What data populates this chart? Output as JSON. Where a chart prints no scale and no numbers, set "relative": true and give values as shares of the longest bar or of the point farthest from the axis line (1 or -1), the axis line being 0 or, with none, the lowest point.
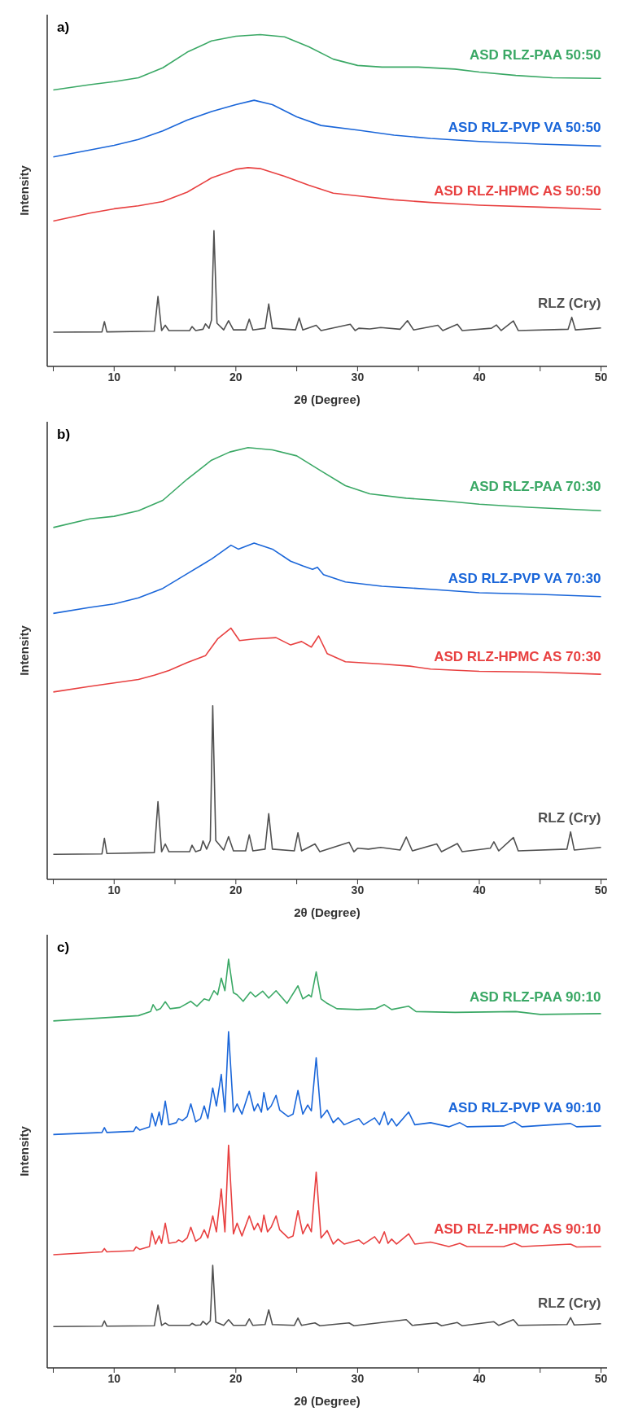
{
  "chart_data": [
    {
      "type": "line",
      "title": "a)",
      "xlabel": "2θ (Degree)",
      "ylabel": "Intensity",
      "relative": true,
      "tick_labels": "x",
      "marker": "none",
      "xlim": [
        4.5,
        50.5
      ],
      "xticks": [
        {
          "value": 5,
          "label": null
        },
        10,
        {
          "value": 15,
          "label": null
        },
        20,
        {
          "value": 25,
          "label": null
        },
        30,
        {
          "value": 35,
          "label": null
        },
        40,
        {
          "value": 45,
          "label": null
        },
        50
      ],
      "series": [
        {
          "name": "ASD RLZ-PAA 50:50",
          "color": "#3aa865",
          "x": [
            5,
            8,
            10,
            12,
            14,
            16,
            18,
            20,
            22,
            24,
            26,
            28,
            30,
            32,
            35,
            38,
            40,
            43,
            46,
            50
          ],
          "values": [
            0.833,
            0.849,
            0.858,
            0.87,
            0.9,
            0.947,
            0.981,
            0.995,
            1.0,
            0.993,
            0.963,
            0.926,
            0.907,
            0.902,
            0.902,
            0.896,
            0.887,
            0.877,
            0.87,
            0.868
          ]
        },
        {
          "name": "ASD RLZ-PVP VA 50:50",
          "color": "#1a66d9",
          "x": [
            5,
            8,
            10,
            12,
            14,
            16,
            18,
            20,
            21.5,
            23,
            25,
            27,
            30,
            33,
            36,
            40,
            45,
            50
          ],
          "values": [
            0.631,
            0.652,
            0.666,
            0.684,
            0.71,
            0.742,
            0.768,
            0.789,
            0.802,
            0.789,
            0.752,
            0.726,
            0.712,
            0.697,
            0.687,
            0.678,
            0.67,
            0.664
          ]
        },
        {
          "name": "ASD RLZ-HPMC AS 50:50",
          "color": "#e84040",
          "x": [
            5,
            8,
            10,
            12,
            14,
            16,
            18,
            20,
            21,
            22,
            24,
            26,
            28,
            30,
            33,
            36,
            40,
            45,
            50
          ],
          "values": [
            0.438,
            0.462,
            0.475,
            0.484,
            0.497,
            0.525,
            0.568,
            0.594,
            0.599,
            0.596,
            0.573,
            0.546,
            0.522,
            0.514,
            0.502,
            0.494,
            0.486,
            0.48,
            0.473
          ]
        },
        {
          "name": "RLZ (Cry)",
          "color": "#505050",
          "x": [
            5,
            9.0,
            9.2,
            9.4,
            13.3,
            13.6,
            13.9,
            14.2,
            14.5,
            16.2,
            16.4,
            16.7,
            17.3,
            17.5,
            17.8,
            18.0,
            18.2,
            18.45,
            19.0,
            19.4,
            19.8,
            20.8,
            21.1,
            21.4,
            22.4,
            22.7,
            23.0,
            24.9,
            25.2,
            25.5,
            26.6,
            27.0,
            29.4,
            29.8,
            30.1,
            31.0,
            31.9,
            33.5,
            34.1,
            34.6,
            36.6,
            37.0,
            38.2,
            38.6,
            41.0,
            41.4,
            41.8,
            42.8,
            43.2,
            47.3,
            47.6,
            47.9,
            50
          ],
          "values": [
            0.103,
            0.104,
            0.135,
            0.104,
            0.106,
            0.211,
            0.108,
            0.124,
            0.108,
            0.108,
            0.12,
            0.108,
            0.112,
            0.128,
            0.115,
            0.14,
            0.409,
            0.13,
            0.11,
            0.138,
            0.11,
            0.11,
            0.142,
            0.11,
            0.115,
            0.188,
            0.115,
            0.11,
            0.146,
            0.11,
            0.124,
            0.108,
            0.127,
            0.108,
            0.115,
            0.113,
            0.117,
            0.112,
            0.138,
            0.11,
            0.124,
            0.108,
            0.127,
            0.108,
            0.115,
            0.125,
            0.108,
            0.137,
            0.108,
            0.112,
            0.148,
            0.11,
            0.116
          ]
        }
      ]
    },
    {
      "type": "line",
      "title": "b)",
      "xlabel": "2θ (Degree)",
      "ylabel": "Intensity",
      "relative": true,
      "tick_labels": "x",
      "marker": "none",
      "xlim": [
        4.5,
        50.5
      ],
      "xticks": [
        {
          "value": 5,
          "label": null
        },
        10,
        {
          "value": 15,
          "label": null
        },
        20,
        {
          "value": 25,
          "label": null
        },
        30,
        {
          "value": 35,
          "label": null
        },
        40,
        {
          "value": 45,
          "label": null
        },
        50
      ],
      "series": [
        {
          "name": "ASD RLZ-PAA 70:30",
          "color": "#3aa865",
          "x": [
            5,
            8,
            10,
            12,
            14,
            16,
            18,
            19.5,
            21,
            23,
            25,
            27,
            29,
            31,
            34,
            37,
            40,
            44,
            50
          ],
          "values": [
            0.815,
            0.835,
            0.841,
            0.854,
            0.878,
            0.927,
            0.971,
            0.99,
            1.0,
            0.995,
            0.981,
            0.946,
            0.912,
            0.893,
            0.883,
            0.877,
            0.869,
            0.862,
            0.854
          ]
        },
        {
          "name": "ASD RLZ-PVP VA 70:30",
          "color": "#1a66d9",
          "x": [
            5,
            8,
            10,
            12,
            14,
            16,
            18,
            19.6,
            20.2,
            21.5,
            23,
            24.5,
            25.5,
            26.3,
            26.7,
            27.2,
            29,
            32,
            36,
            40,
            45,
            50
          ],
          "values": [
            0.616,
            0.63,
            0.638,
            0.652,
            0.674,
            0.708,
            0.742,
            0.774,
            0.765,
            0.779,
            0.765,
            0.737,
            0.726,
            0.718,
            0.723,
            0.706,
            0.689,
            0.679,
            0.672,
            0.664,
            0.66,
            0.655
          ]
        },
        {
          "name": "ASD RLZ-HPMC AS 70:30",
          "color": "#e84040",
          "x": [
            5,
            8,
            10,
            12,
            13.3,
            14.5,
            16,
            17.5,
            18.5,
            19.6,
            20.3,
            21.5,
            23.3,
            24.5,
            25.4,
            26.2,
            26.8,
            27.5,
            29,
            32,
            34.3,
            36,
            40,
            45,
            50
          ],
          "values": [
            0.434,
            0.447,
            0.455,
            0.463,
            0.473,
            0.484,
            0.502,
            0.518,
            0.557,
            0.582,
            0.553,
            0.557,
            0.56,
            0.543,
            0.551,
            0.538,
            0.564,
            0.523,
            0.504,
            0.499,
            0.494,
            0.487,
            0.482,
            0.48,
            0.475
          ]
        },
        {
          "name": "RLZ (Cry)",
          "color": "#505050",
          "x": [
            5,
            9.0,
            9.2,
            9.4,
            13.3,
            13.6,
            13.9,
            14.2,
            14.5,
            16.2,
            16.4,
            16.7,
            17.1,
            17.3,
            17.6,
            17.9,
            18.1,
            18.35,
            19.0,
            19.4,
            19.8,
            20.8,
            21.1,
            21.4,
            22.4,
            22.7,
            23.0,
            24.8,
            25.1,
            25.4,
            26.5,
            26.9,
            29.3,
            29.7,
            30.0,
            30.9,
            31.9,
            33.5,
            34.0,
            34.5,
            36.5,
            36.9,
            38.2,
            38.6,
            40.9,
            41.2,
            41.6,
            42.8,
            43.2,
            47.2,
            47.5,
            47.8,
            50
          ],
          "values": [
            0.058,
            0.059,
            0.095,
            0.06,
            0.062,
            0.18,
            0.064,
            0.082,
            0.064,
            0.064,
            0.079,
            0.064,
            0.068,
            0.089,
            0.07,
            0.09,
            0.402,
            0.09,
            0.068,
            0.099,
            0.066,
            0.066,
            0.103,
            0.066,
            0.07,
            0.152,
            0.07,
            0.066,
            0.108,
            0.066,
            0.082,
            0.064,
            0.086,
            0.064,
            0.072,
            0.07,
            0.074,
            0.068,
            0.098,
            0.066,
            0.082,
            0.064,
            0.083,
            0.064,
            0.072,
            0.087,
            0.066,
            0.097,
            0.066,
            0.07,
            0.11,
            0.068,
            0.074
          ]
        }
      ]
    },
    {
      "type": "line",
      "title": "c)",
      "xlabel": "2θ (Degree)",
      "ylabel": "Intensity",
      "relative": true,
      "tick_labels": "x",
      "marker": "none",
      "xlim": [
        4.5,
        50.5
      ],
      "xticks": [
        {
          "value": 5,
          "label": null
        },
        10,
        {
          "value": 15,
          "label": null
        },
        20,
        {
          "value": 25,
          "label": null
        },
        30,
        {
          "value": 35,
          "label": null
        },
        40,
        {
          "value": 45,
          "label": null
        },
        50
      ],
      "series": [
        {
          "name": "ASD RLZ-PAA 90:10",
          "color": "#3aa865",
          "x": [
            5,
            12,
            13.0,
            13.2,
            13.5,
            13.8,
            14.2,
            14.6,
            15.4,
            16.3,
            16.8,
            17.4,
            17.8,
            18.2,
            18.5,
            18.8,
            19.1,
            19.4,
            19.8,
            20.1,
            20.6,
            21.2,
            21.6,
            22.2,
            22.7,
            23.3,
            24.2,
            25.1,
            25.5,
            26.0,
            26.2,
            26.6,
            27.0,
            27.5,
            28.3,
            30,
            31.5,
            32.2,
            32.8,
            34.2,
            34.8,
            38,
            43,
            45,
            50
          ],
          "values": [
            0.849,
            0.862,
            0.872,
            0.889,
            0.875,
            0.879,
            0.896,
            0.879,
            0.882,
            0.897,
            0.885,
            0.903,
            0.899,
            0.923,
            0.913,
            0.954,
            0.923,
            1.0,
            0.918,
            0.913,
            0.897,
            0.92,
            0.908,
            0.922,
            0.905,
            0.923,
            0.892,
            0.935,
            0.903,
            0.913,
            0.908,
            0.969,
            0.903,
            0.892,
            0.879,
            0.877,
            0.879,
            0.889,
            0.877,
            0.885,
            0.872,
            0.87,
            0.872,
            0.865,
            0.867
          ]
        },
        {
          "name": "ASD RLZ-PVP VA 90:10",
          "color": "#1a66d9",
          "x": [
            5,
            9.0,
            9.2,
            9.4,
            11.6,
            11.8,
            12.1,
            12.9,
            13.1,
            13.4,
            13.7,
            13.9,
            14.2,
            14.5,
            15.1,
            15.3,
            15.6,
            16.0,
            16.3,
            16.7,
            17.1,
            17.4,
            17.7,
            18.1,
            18.4,
            18.8,
            19.1,
            19.4,
            19.8,
            20.1,
            20.5,
            21.1,
            21.5,
            21.8,
            22.1,
            22.3,
            22.6,
            22.9,
            23.3,
            23.6,
            24.3,
            24.7,
            25.1,
            25.5,
            25.9,
            26.2,
            26.6,
            27.0,
            27.5,
            28.0,
            28.4,
            28.9,
            30.1,
            30.5,
            31.4,
            31.8,
            32.2,
            32.5,
            32.8,
            33.2,
            34.2,
            34.7,
            36.0,
            37.5,
            38.4,
            39.0,
            42.0,
            42.9,
            43.5,
            47.5,
            48.0,
            50
          ],
          "values": [
            0.571,
            0.576,
            0.588,
            0.576,
            0.579,
            0.59,
            0.582,
            0.59,
            0.623,
            0.592,
            0.626,
            0.595,
            0.653,
            0.595,
            0.6,
            0.61,
            0.605,
            0.615,
            0.646,
            0.602,
            0.61,
            0.641,
            0.61,
            0.685,
            0.641,
            0.718,
            0.626,
            0.823,
            0.626,
            0.646,
            0.621,
            0.677,
            0.629,
            0.646,
            0.626,
            0.674,
            0.631,
            0.641,
            0.667,
            0.631,
            0.615,
            0.621,
            0.679,
            0.621,
            0.643,
            0.629,
            0.759,
            0.612,
            0.631,
            0.6,
            0.612,
            0.595,
            0.61,
            0.595,
            0.612,
            0.595,
            0.626,
            0.595,
            0.61,
            0.592,
            0.626,
            0.595,
            0.6,
            0.59,
            0.6,
            0.59,
            0.592,
            0.602,
            0.59,
            0.598,
            0.59,
            0.592
          ]
        },
        {
          "name": "ASD RLZ-HPMC AS 90:10",
          "color": "#e84040",
          "x": [
            5,
            9.0,
            9.2,
            9.4,
            11.6,
            11.8,
            12.1,
            12.9,
            13.1,
            13.4,
            13.7,
            13.9,
            14.2,
            14.5,
            15.1,
            15.3,
            15.6,
            16.0,
            16.3,
            16.7,
            17.1,
            17.4,
            17.7,
            18.1,
            18.4,
            18.8,
            19.1,
            19.4,
            19.8,
            20.1,
            20.5,
            21.1,
            21.5,
            21.8,
            22.1,
            22.3,
            22.6,
            22.9,
            23.3,
            23.6,
            24.3,
            24.7,
            25.1,
            25.5,
            25.9,
            26.2,
            26.6,
            27.0,
            27.5,
            28.0,
            28.4,
            28.9,
            30.1,
            30.5,
            31.4,
            31.8,
            32.2,
            32.5,
            32.8,
            33.2,
            34.2,
            34.7,
            36.0,
            37.5,
            38.4,
            39.0,
            42.0,
            42.9,
            43.5,
            47.5,
            48.0,
            50
          ],
          "values": [
            0.277,
            0.284,
            0.292,
            0.284,
            0.287,
            0.296,
            0.29,
            0.297,
            0.335,
            0.303,
            0.323,
            0.305,
            0.354,
            0.305,
            0.308,
            0.313,
            0.308,
            0.318,
            0.344,
            0.31,
            0.318,
            0.338,
            0.318,
            0.372,
            0.333,
            0.438,
            0.333,
            0.545,
            0.328,
            0.354,
            0.323,
            0.372,
            0.338,
            0.354,
            0.333,
            0.374,
            0.333,
            0.344,
            0.372,
            0.338,
            0.318,
            0.323,
            0.385,
            0.328,
            0.352,
            0.333,
            0.479,
            0.318,
            0.336,
            0.303,
            0.315,
            0.303,
            0.313,
            0.303,
            0.321,
            0.305,
            0.333,
            0.305,
            0.315,
            0.303,
            0.328,
            0.303,
            0.308,
            0.297,
            0.305,
            0.297,
            0.297,
            0.305,
            0.297,
            0.303,
            0.296,
            0.297
          ]
        },
        {
          "name": "RLZ (Cry)",
          "color": "#505050",
          "x": [
            5,
            9.0,
            9.2,
            9.4,
            13.3,
            13.6,
            13.9,
            14.2,
            14.5,
            16.2,
            16.4,
            16.7,
            17.1,
            17.3,
            17.6,
            17.9,
            18.1,
            18.35,
            19.0,
            19.4,
            19.8,
            20.8,
            21.1,
            21.4,
            22.4,
            22.7,
            23.0,
            24.8,
            25.1,
            25.4,
            26.5,
            26.9,
            29.3,
            29.7,
            34.0,
            34.5,
            36.5,
            36.9,
            38.2,
            38.6,
            41.2,
            41.6,
            42.8,
            43.2,
            47.2,
            47.5,
            47.8,
            50
          ],
          "values": [
            0.101,
            0.102,
            0.115,
            0.102,
            0.103,
            0.154,
            0.104,
            0.11,
            0.104,
            0.104,
            0.109,
            0.104,
            0.105,
            0.114,
            0.106,
            0.115,
            0.251,
            0.112,
            0.104,
            0.118,
            0.104,
            0.104,
            0.12,
            0.104,
            0.106,
            0.142,
            0.106,
            0.104,
            0.122,
            0.104,
            0.11,
            0.103,
            0.11,
            0.103,
            0.118,
            0.104,
            0.11,
            0.103,
            0.111,
            0.103,
            0.113,
            0.104,
            0.118,
            0.104,
            0.106,
            0.123,
            0.105,
            0.108
          ]
        }
      ]
    }
  ]
}
